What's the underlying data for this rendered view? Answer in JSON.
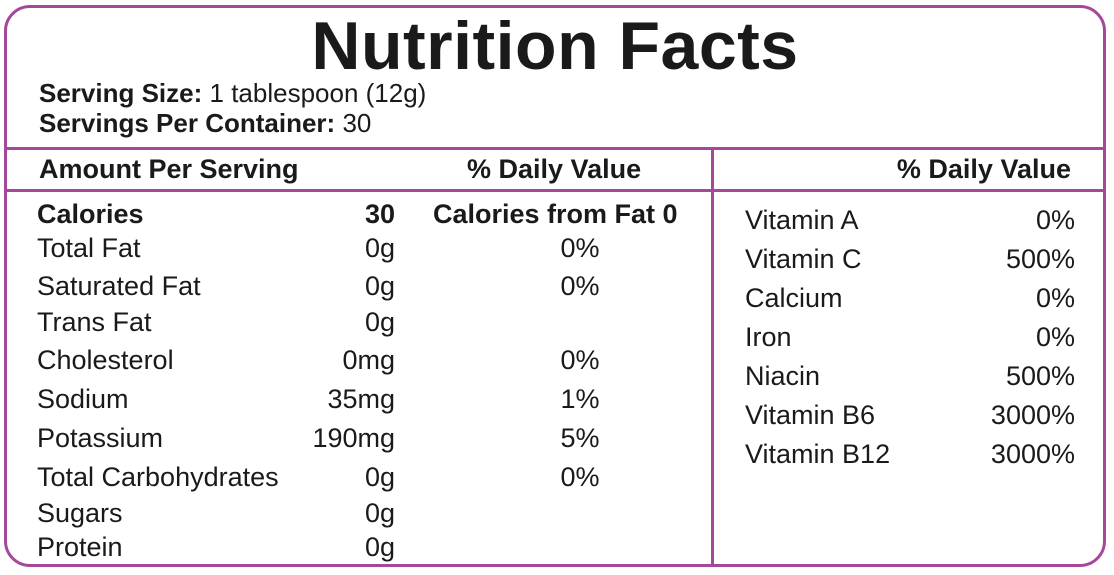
{
  "title": "Nutrition Facts",
  "serving": {
    "size_label": "Serving Size:",
    "size_value": "1 tablespoon (12g)",
    "per_container_label": "Servings Per Container:",
    "per_container_value": "30"
  },
  "headers": {
    "amount_per_serving": "Amount Per Serving",
    "daily_value_left": "% Daily Value",
    "daily_value_right": "% Daily Value"
  },
  "calories": {
    "label": "Calories",
    "value": "30",
    "from_fat": "Calories from Fat 0"
  },
  "nutrients": [
    {
      "label": "Total Fat",
      "amount": "0g",
      "dv": "0%"
    },
    {
      "label": "Saturated Fat",
      "amount": "0g",
      "dv": "0%"
    },
    {
      "label": "Trans Fat",
      "amount": "0g",
      "dv": ""
    },
    {
      "label": "Cholesterol",
      "amount": "0mg",
      "dv": "0%"
    },
    {
      "label": "Sodium",
      "amount": "35mg",
      "dv": "1%"
    },
    {
      "label": "Potassium",
      "amount": "190mg",
      "dv": "5%"
    },
    {
      "label": "Total Carbohydrates",
      "amount": "0g",
      "dv": "0%"
    },
    {
      "label": "Sugars",
      "amount": "0g",
      "dv": ""
    },
    {
      "label": "Protein",
      "amount": "0g",
      "dv": ""
    }
  ],
  "vitamins": [
    {
      "label": "Vitamin A",
      "dv": "0%"
    },
    {
      "label": "Vitamin C",
      "dv": "500%"
    },
    {
      "label": "Calcium",
      "dv": "0%"
    },
    {
      "label": "Iron",
      "dv": "0%"
    },
    {
      "label": "Niacin",
      "dv": "500%"
    },
    {
      "label": "Vitamin B6",
      "dv": "3000%"
    },
    {
      "label": "Vitamin B12",
      "dv": "3000%"
    }
  ],
  "colors": {
    "border": "#a6489a",
    "text": "#1a1a1a"
  }
}
